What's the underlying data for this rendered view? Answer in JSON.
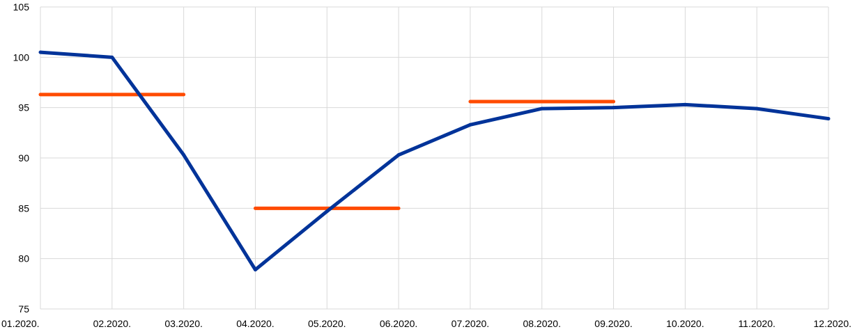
{
  "chart_data": {
    "type": "line",
    "title": "",
    "xlabel": "",
    "ylabel": "",
    "categories": [
      "01.2020.",
      "02.2020.",
      "03.2020.",
      "04.2020.",
      "05.2020.",
      "06.2020.",
      "07.2020.",
      "08.2020.",
      "09.2020.",
      "10.2020.",
      "11.2020.",
      "12.2020."
    ],
    "ylim": [
      75,
      105
    ],
    "yticks": [
      75,
      80,
      85,
      90,
      95,
      100,
      105
    ],
    "grid": true,
    "legend": "none",
    "series": [
      {
        "kind": "line",
        "color": "#003399",
        "values": [
          100.5,
          100.0,
          90.3,
          78.9,
          84.7,
          90.3,
          93.3,
          94.9,
          95.0,
          95.3,
          94.9,
          93.9
        ]
      },
      {
        "kind": "segments",
        "color": "#ff4b00",
        "segments": [
          {
            "x_start": "01.2020.",
            "x_end": "03.2020.",
            "value": 96.3
          },
          {
            "x_start": "04.2020.",
            "x_end": "06.2020.",
            "value": 85.0
          },
          {
            "x_start": "07.2020.",
            "x_end": "09.2020.",
            "value": 95.6
          }
        ]
      }
    ]
  }
}
